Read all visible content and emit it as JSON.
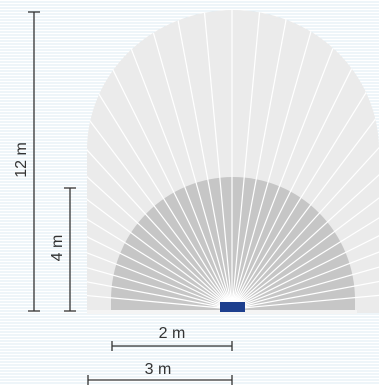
{
  "diagram": {
    "labels": {
      "height_outer": "12 m",
      "height_inner": "4 m",
      "width_inner": "2 m",
      "width_outer": "3 m"
    },
    "colors": {
      "background_stripe": "#dcebf3",
      "outer_zone": "#ebebeb",
      "inner_zone": "#c6c6c6",
      "sector_lines": "#ffffff",
      "dimension_lines": "#333333",
      "sensor": "#1d3f8e"
    },
    "icons": {
      "sensor": "sensor-icon"
    }
  }
}
